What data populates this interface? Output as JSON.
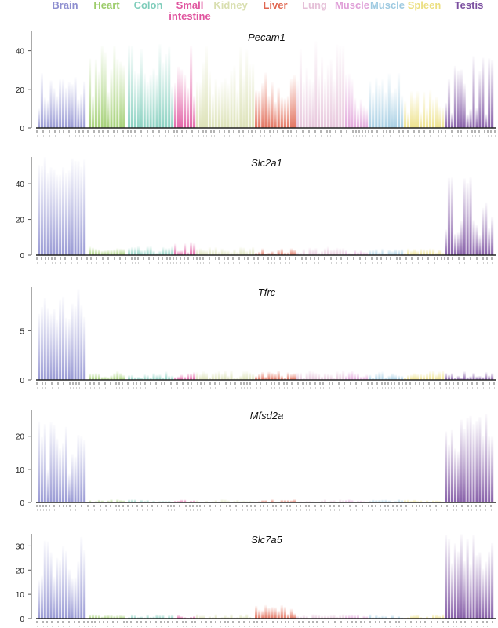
{
  "chart_data": [
    {
      "type": "bar",
      "title": "Pecam1",
      "ylim": [
        0,
        50
      ],
      "yticks": [
        0,
        20,
        40
      ],
      "categories": [
        "Brain",
        "Heart",
        "Colon",
        "Small intestine",
        "Kidney",
        "Liver",
        "Lung",
        "Muscle",
        "Muscle",
        "Spleen",
        "Testis"
      ],
      "series": [
        {
          "typical": [
            10,
            15,
            20,
            15,
            12,
            8,
            22,
            10,
            15,
            8,
            6
          ],
          "max": [
            30,
            45,
            45,
            45,
            45,
            30,
            45,
            30,
            30,
            20,
            40
          ]
        }
      ]
    },
    {
      "type": "bar",
      "title": "Slc2a1",
      "ylim": [
        0,
        55
      ],
      "yticks": [
        0,
        20,
        40
      ],
      "categories": [
        "Brain",
        "Heart",
        "Colon",
        "Small intestine",
        "Kidney",
        "Liver",
        "Lung",
        "Muscle",
        "Muscle",
        "Spleen",
        "Testis"
      ],
      "series": [
        {
          "typical": [
            45,
            1,
            1,
            1,
            1,
            1,
            1,
            1,
            1,
            1,
            10
          ],
          "max": [
            55,
            5,
            5,
            8,
            5,
            4,
            5,
            4,
            4,
            4,
            45
          ]
        }
      ]
    },
    {
      "type": "bar",
      "title": "Tfrc",
      "ylim": [
        0,
        9.5
      ],
      "yticks": [
        0,
        5
      ],
      "categories": [
        "Brain",
        "Heart",
        "Colon",
        "Small intestine",
        "Kidney",
        "Liver",
        "Lung",
        "Muscle",
        "Muscle",
        "Spleen",
        "Testis"
      ],
      "series": [
        {
          "typical": [
            5,
            0.2,
            0.2,
            0.2,
            0.2,
            0.2,
            0.2,
            0.2,
            0.2,
            0.2,
            0.2
          ],
          "max": [
            9.5,
            1,
            1,
            1,
            1,
            1,
            1,
            1,
            1,
            1,
            1
          ]
        }
      ]
    },
    {
      "type": "bar",
      "title": "Mfsd2a",
      "ylim": [
        0,
        28
      ],
      "yticks": [
        0,
        10,
        20
      ],
      "categories": [
        "Brain",
        "Heart",
        "Colon",
        "Small intestine",
        "Kidney",
        "Liver",
        "Lung",
        "Muscle",
        "Muscle",
        "Spleen",
        "Testis"
      ],
      "series": [
        {
          "typical": [
            5,
            0.2,
            0.2,
            0.2,
            0.2,
            0.2,
            0.2,
            0.2,
            0.2,
            0.2,
            15
          ],
          "max": [
            25,
            1,
            1,
            1,
            1,
            1,
            1,
            1,
            1,
            1,
            28
          ]
        }
      ]
    },
    {
      "type": "bar",
      "title": "Slc7a5",
      "ylim": [
        0,
        35
      ],
      "yticks": [
        0,
        10,
        20,
        30
      ],
      "categories": [
        "Brain",
        "Heart",
        "Colon",
        "Small intestine",
        "Kidney",
        "Liver",
        "Lung",
        "Muscle",
        "Muscle",
        "Spleen",
        "Testis"
      ],
      "series": [
        {
          "typical": [
            15,
            0.3,
            0.3,
            0.3,
            0.3,
            2,
            0.3,
            0.3,
            0.3,
            0.3,
            20
          ],
          "max": [
            35,
            2,
            2,
            2,
            2,
            6,
            2,
            2,
            2,
            2,
            35
          ]
        }
      ]
    }
  ],
  "legend": [
    {
      "label": "Brain",
      "color": "#8e8fd0"
    },
    {
      "label": "Heart",
      "color": "#9ccc6a"
    },
    {
      "label": "Colon",
      "color": "#7fcdbb"
    },
    {
      "label": "Small intestine",
      "color": "#e0559f"
    },
    {
      "label": "Kidney",
      "color": "#d9dfb0"
    },
    {
      "label": "Liver",
      "color": "#e06650"
    },
    {
      "label": "Lung",
      "color": "#e5c0d8"
    },
    {
      "label": "Muscle",
      "color": "#e0a0d8"
    },
    {
      "label": "Muscle",
      "color": "#9ecae1"
    },
    {
      "label": "Spleen",
      "color": "#ecdf80"
    },
    {
      "label": "Testis",
      "color": "#7b4fa0"
    }
  ]
}
